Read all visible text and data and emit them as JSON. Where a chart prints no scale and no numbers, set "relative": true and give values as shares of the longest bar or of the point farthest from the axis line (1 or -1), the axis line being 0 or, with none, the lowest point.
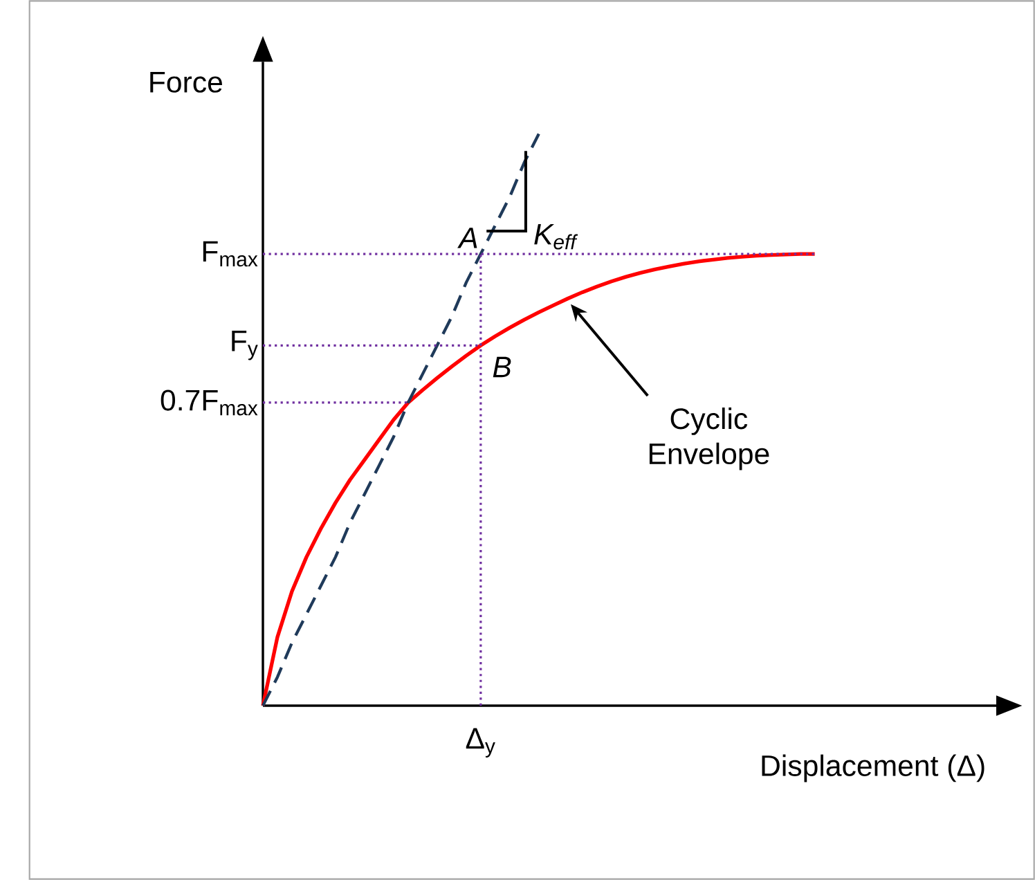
{
  "chart_data": {
    "type": "line",
    "relative": true,
    "xlabel": "Displacement (Δ)",
    "ylabel": "Force",
    "marker": "none",
    "categories": [
      null,
      null,
      null,
      null,
      null,
      null,
      null,
      null,
      null,
      null,
      null,
      null,
      null,
      null,
      null,
      null,
      null,
      null,
      null,
      null,
      null,
      null,
      null,
      null,
      null,
      null,
      null,
      null,
      null,
      null,
      null,
      null,
      null,
      null,
      null,
      null,
      null,
      null,
      null
    ],
    "series": [
      {
        "color": "#ff0000",
        "line_style": "solid",
        "values": [
          0,
          0.12,
          0.2,
          0.26,
          0.31,
          0.355,
          0.395,
          0.43,
          0.465,
          0.5,
          0.53,
          0.552,
          0.573,
          0.593,
          0.612,
          0.63,
          0.646,
          0.661,
          0.675,
          0.688,
          0.7,
          0.712,
          0.723,
          0.733,
          0.742,
          0.75,
          0.757,
          0.763,
          0.768,
          0.773,
          0.777,
          0.78,
          0.783,
          0.785,
          0.787,
          0.788,
          0.789,
          0.79,
          0.79
        ]
      },
      {
        "color": "#1f3a5a",
        "line_style": "dashed",
        "values": [
          0,
          0.05,
          0.11,
          0.16,
          0.21,
          0.26,
          0.32,
          0.37,
          0.42,
          0.47,
          0.53,
          0.58,
          0.63,
          0.68,
          0.74,
          0.79,
          0.84,
          0.89,
          0.95,
          1,
          null,
          null,
          null,
          null,
          null,
          null,
          null,
          null,
          null,
          null,
          null,
          null,
          null,
          null,
          null,
          null,
          null,
          null,
          null
        ]
      },
      {
        "color": "#7030a0",
        "line_style": "dotted",
        "values": [
          0.79,
          0.79,
          0.79,
          0.79,
          0.79,
          0.79,
          0.79,
          0.79,
          0.79,
          0.79,
          0.79,
          0.79,
          0.79,
          0.79,
          0.79,
          0.79,
          0.79,
          0.79,
          0.79,
          0.79,
          0.79,
          0.79,
          0.79,
          0.79,
          0.79,
          0.79,
          0.79,
          0.79,
          0.79,
          0.79,
          0.79,
          0.79,
          0.79,
          0.79,
          0.79,
          0.79,
          0.79,
          0.79,
          0.79
        ]
      },
      {
        "color": "#7030a0",
        "line_style": "dotted",
        "values": [
          0.63,
          0.63,
          0.63,
          0.63,
          0.63,
          0.63,
          0.63,
          0.63,
          0.63,
          0.63,
          0.63,
          0.63,
          0.63,
          0.63,
          0.63,
          0.63,
          null,
          null,
          null,
          null,
          null,
          null,
          null,
          null,
          null,
          null,
          null,
          null,
          null,
          null,
          null,
          null,
          null,
          null,
          null,
          null,
          null,
          null,
          null
        ]
      },
      {
        "color": "#7030a0",
        "line_style": "dotted",
        "values": [
          0.53,
          0.53,
          0.53,
          0.53,
          0.53,
          0.53,
          0.53,
          0.53,
          0.53,
          0.53,
          0.53,
          null,
          null,
          null,
          null,
          null,
          null,
          null,
          null,
          null,
          null,
          null,
          null,
          null,
          null,
          null,
          null,
          null,
          null,
          null,
          null,
          null,
          null,
          null,
          null,
          null,
          null,
          null,
          null
        ]
      }
    ],
    "annotations": [
      "F$_{max}$",
      "F$_{y}$",
      "0.7F$_{max}$",
      "Δ$_{y}$",
      "A",
      "B",
      "K$_{eff}$",
      "Cyclic Envelope"
    ]
  }
}
